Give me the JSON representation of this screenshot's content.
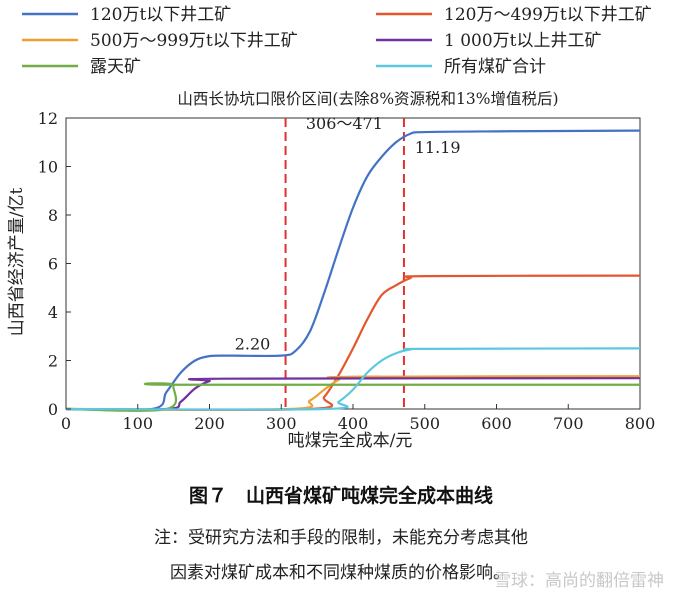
{
  "chart_data": {
    "type": "line",
    "title": "山西长协坑口限价区间(去除8%资源税和13%增值税后)",
    "xlabel": "吨煤完全成本/元",
    "ylabel": "山西省经济产量/亿t",
    "xlim": [
      0,
      800
    ],
    "ylim": [
      0,
      12
    ],
    "x_ticks": [
      "0",
      "100",
      "200",
      "300",
      "400",
      "500",
      "600",
      "700",
      "800"
    ],
    "y_ticks": [
      "0",
      "2",
      "4",
      "6",
      "8",
      "10",
      "12"
    ],
    "grid": false,
    "legend_position": "top",
    "series": [
      {
        "name": "120万t以下井工矿",
        "color": "#4472c4",
        "points": [
          [
            0,
            0
          ],
          [
            120,
            0
          ],
          [
            140,
            0.7
          ],
          [
            160,
            1.5
          ],
          [
            180,
            2.0
          ],
          [
            200,
            2.18
          ],
          [
            230,
            2.2
          ],
          [
            300,
            2.2
          ],
          [
            320,
            2.4
          ],
          [
            340,
            3.2
          ],
          [
            360,
            4.8
          ],
          [
            380,
            6.6
          ],
          [
            400,
            8.3
          ],
          [
            420,
            9.6
          ],
          [
            440,
            10.4
          ],
          [
            460,
            11.0
          ],
          [
            480,
            11.35
          ],
          [
            500,
            11.42
          ],
          [
            600,
            11.45
          ],
          [
            800,
            11.48
          ]
        ]
      },
      {
        "name": "120万～499万t以下井工矿",
        "color": "#e4572e",
        "points": [
          [
            0,
            0
          ],
          [
            340,
            0
          ],
          [
            360,
            0.5
          ],
          [
            380,
            1.4
          ],
          [
            400,
            2.5
          ],
          [
            420,
            3.7
          ],
          [
            440,
            4.7
          ],
          [
            460,
            5.1
          ],
          [
            480,
            5.4
          ],
          [
            500,
            5.48
          ],
          [
            800,
            5.5
          ]
        ]
      },
      {
        "name": "500万～999万t以下井工矿",
        "color": "#f0a030",
        "points": [
          [
            0,
            0
          ],
          [
            310,
            0
          ],
          [
            340,
            0.35
          ],
          [
            360,
            0.8
          ],
          [
            380,
            1.2
          ],
          [
            400,
            1.33
          ],
          [
            800,
            1.35
          ]
        ]
      },
      {
        "name": "1 000万t以上井工矿",
        "color": "#7030a0",
        "points": [
          [
            0,
            0
          ],
          [
            140,
            0
          ],
          [
            160,
            0.3
          ],
          [
            180,
            0.85
          ],
          [
            200,
            1.15
          ],
          [
            220,
            1.25
          ],
          [
            800,
            1.27
          ]
        ]
      },
      {
        "name": "露天矿",
        "color": "#70ad47",
        "points": [
          [
            0,
            0
          ],
          [
            140,
            0
          ],
          [
            150,
            0.98
          ],
          [
            160,
            1.0
          ],
          [
            800,
            1.0
          ]
        ]
      },
      {
        "name": "所有煤矿合计",
        "color": "#5bc8e0",
        "points": [
          [
            0,
            0
          ],
          [
            360,
            0
          ],
          [
            380,
            0.3
          ],
          [
            400,
            0.8
          ],
          [
            420,
            1.5
          ],
          [
            440,
            2.0
          ],
          [
            460,
            2.3
          ],
          [
            480,
            2.45
          ],
          [
            500,
            2.48
          ],
          [
            800,
            2.5
          ]
        ]
      }
    ],
    "ref_lines": {
      "x": [
        306,
        471
      ],
      "color": "#e03030",
      "style": "dashed"
    },
    "annotations": [
      {
        "text": "2.20",
        "x": 260,
        "y": 2.45
      },
      {
        "text": "306～471",
        "x": 388,
        "y": 11.55
      },
      {
        "text": "11.19",
        "x": 518,
        "y": 10.55
      }
    ]
  },
  "caption": {
    "figure_title": "图７　山西省煤矿吨煤完全成本曲线",
    "note_line1": "注：受研究方法和手段的限制，未能充分考虑其他",
    "note_line2": "因素对煤矿成本和不同煤种煤质的价格影响。"
  },
  "watermark": "雪球：高尚的翻倍雷神"
}
